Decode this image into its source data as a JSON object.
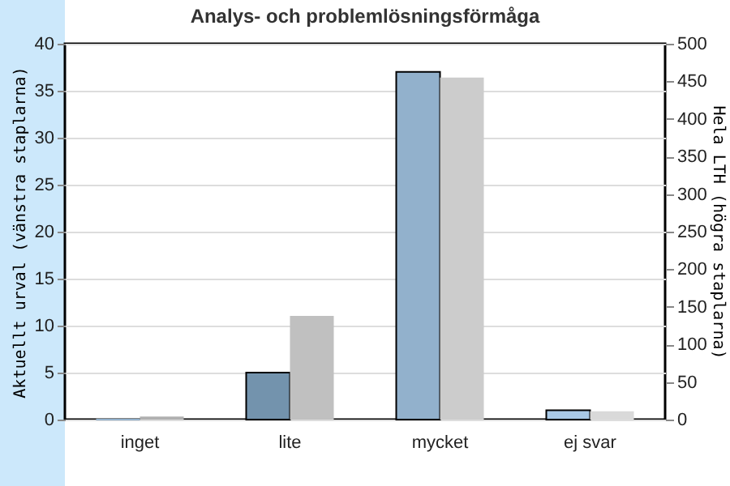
{
  "chart_data": {
    "type": "bar",
    "title": "Analys- och problemlösningsförmåga",
    "ylabel": "Aktuellt urval (vänstra staplarna)",
    "y2label": "Hela LTH (högra staplarna)",
    "categories": [
      "inget",
      "lite",
      "mycket",
      "ej svar"
    ],
    "series": [
      {
        "axis": "y",
        "colors": [
          "#92b1cc",
          "#7393ad",
          "#92b1cc",
          "#a9c9e6"
        ],
        "values": [
          0,
          5,
          37,
          1
        ]
      },
      {
        "axis": "y2",
        "colors": [
          "#b0b0b0",
          "#c0c0c0",
          "#cccccc",
          "#d9d9d9"
        ],
        "values": [
          4,
          138,
          455,
          11
        ]
      }
    ],
    "ylim": [
      0,
      40
    ],
    "yticks": [
      0,
      5,
      10,
      15,
      20,
      25,
      30,
      35,
      40
    ],
    "y2lim": [
      0,
      500
    ],
    "y2ticks": [
      0,
      50,
      100,
      150,
      200,
      250,
      300,
      350,
      400,
      450,
      500
    ],
    "grid": "y"
  }
}
